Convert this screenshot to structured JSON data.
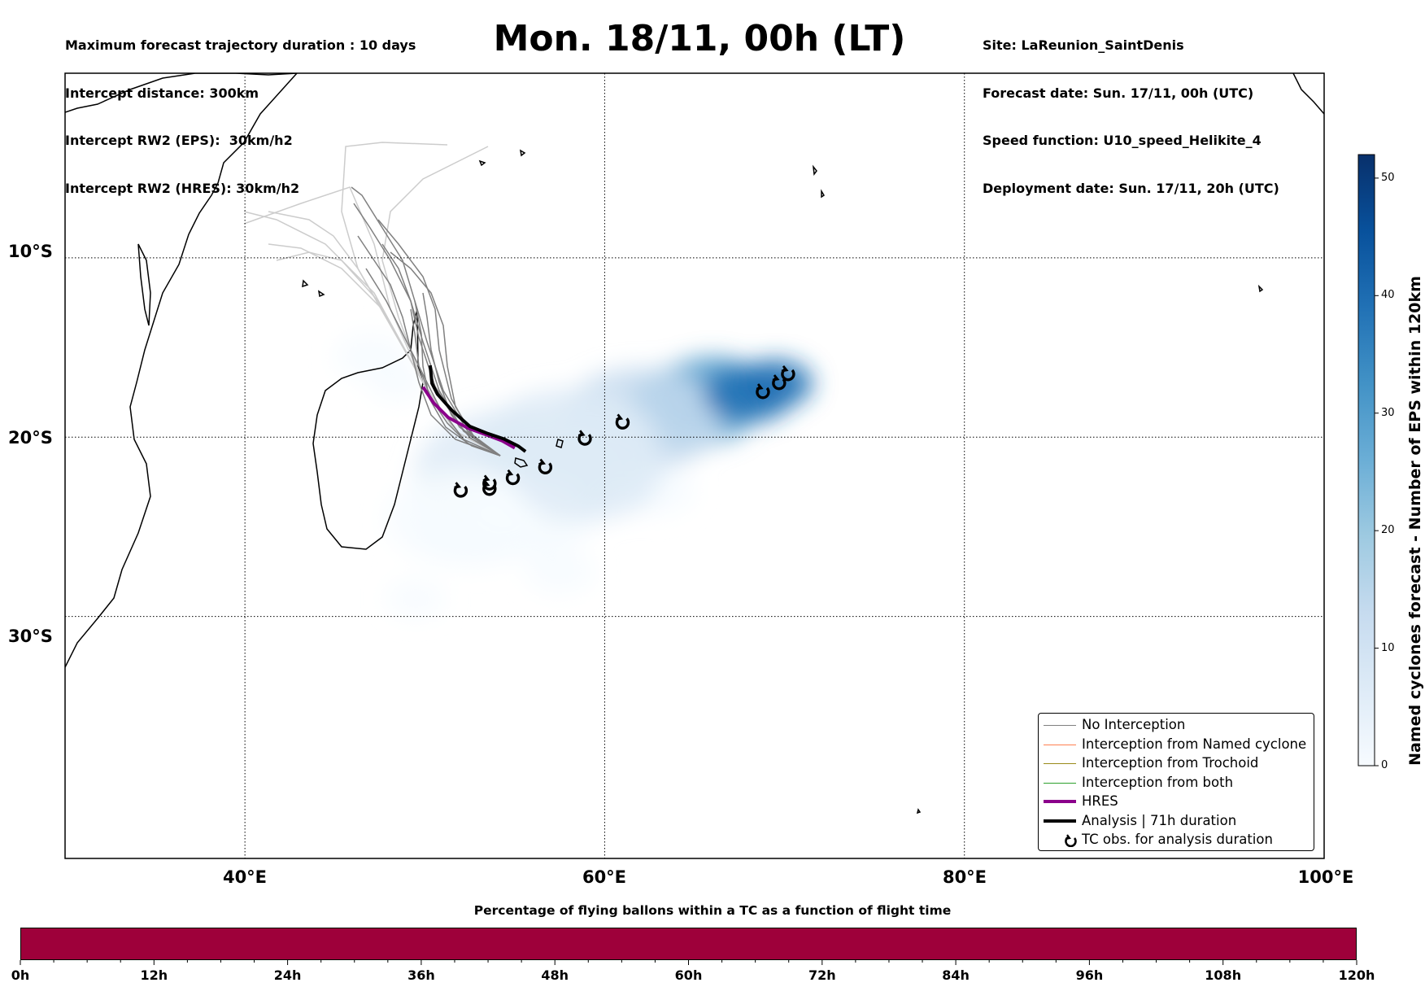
{
  "header": {
    "left_lines": [
      "Maximum forecast trajectory duration : 10 days",
      "Intercept distance: 300km",
      "Intercept RW2 (EPS):  30km/h2",
      "Intercept RW2 (HRES): 30km/h2"
    ],
    "title": "Mon. 18/11, 00h (LT)",
    "right_lines": [
      "Site: LaReunion_SaintDenis",
      "Forecast date: Sun. 17/11, 00h (UTC)",
      "Speed function: U10_speed_Helikite_4",
      "Deployment date: Sun. 17/11, 20h (UTC)"
    ]
  },
  "map": {
    "lon_range": [
      30,
      100
    ],
    "lat_range": [
      -43.5,
      0.3
    ],
    "lat_labels": [
      "10°S",
      "20°S",
      "30°S"
    ],
    "lon_labels": [
      "40°E",
      "60°E",
      "80°E",
      "100°E"
    ],
    "lat_lines": [
      -10,
      -20,
      -30
    ],
    "lon_lines": [
      40,
      60,
      80
    ],
    "grid": "dotted"
  },
  "legend": {
    "placement": "lower-right",
    "items": [
      {
        "label": "No Interception",
        "color": "#808080",
        "kind": "line-thin"
      },
      {
        "label": "Interception from Named cyclone",
        "color": "#ff7f50",
        "kind": "line-thin"
      },
      {
        "label": "Interception from Trochoid",
        "color": "#9a8a1a",
        "kind": "line-thin"
      },
      {
        "label": "Interception from both",
        "color": "#2ca02c",
        "kind": "line-thin"
      },
      {
        "label": "HRES",
        "color": "#8b008b",
        "kind": "line-thick"
      },
      {
        "label": "Analysis | 71h duration",
        "color": "#000000",
        "kind": "line-thick"
      },
      {
        "label": "TC obs. for analysis duration",
        "color": "#000000",
        "kind": "cyclone-icon"
      }
    ]
  },
  "colorbar": {
    "label": "Named cyclones forecast - Number of EPS within 120km",
    "ticks": [
      "0",
      "10",
      "20",
      "30",
      "40",
      "50"
    ],
    "tick_values": [
      0,
      10,
      20,
      30,
      40,
      50
    ],
    "max": 52,
    "colors": [
      "#f7fbff",
      "#deebf7",
      "#c6dbef",
      "#9ecae1",
      "#6baed6",
      "#4292c6",
      "#2171b5",
      "#08519c",
      "#08306b"
    ]
  },
  "bottom_bar": {
    "title": "Percentage of flying ballons within a TC as a function of flight time",
    "color": "#9e003a",
    "tick_labels": [
      "0h",
      "12h",
      "24h",
      "36h",
      "48h",
      "60h",
      "72h",
      "84h",
      "96h",
      "108h",
      "120h"
    ],
    "max_hours": 120
  },
  "chart_data": {
    "type": "map",
    "analysis_track": [
      [
        50.3,
        -16.0
      ],
      [
        50.4,
        -17.0
      ],
      [
        50.7,
        -17.6
      ],
      [
        51.5,
        -18.5
      ],
      [
        52.5,
        -19.4
      ],
      [
        53.5,
        -19.8
      ],
      [
        54.4,
        -20.1
      ],
      [
        55.2,
        -20.5
      ],
      [
        55.6,
        -20.8
      ]
    ],
    "hres_track": [
      [
        49.9,
        -17.2
      ],
      [
        50.5,
        -18.1
      ],
      [
        51.3,
        -18.9
      ],
      [
        52.4,
        -19.5
      ],
      [
        53.5,
        -19.9
      ],
      [
        54.3,
        -20.2
      ],
      [
        55.0,
        -20.6
      ]
    ],
    "tc_observations": [
      [
        52.0,
        -22.9
      ],
      [
        53.6,
        -22.8
      ],
      [
        53.6,
        -22.5
      ],
      [
        54.9,
        -22.2
      ],
      [
        56.7,
        -21.6
      ],
      [
        58.9,
        -20.0
      ],
      [
        61.0,
        -19.1
      ],
      [
        68.8,
        -17.4
      ],
      [
        69.7,
        -16.9
      ],
      [
        70.2,
        -16.4
      ]
    ],
    "density_blobs": [
      [
        66,
        -17.5,
        2.2,
        30
      ],
      [
        65,
        -18.2,
        2.6,
        24
      ],
      [
        62,
        -19.0,
        3.2,
        14
      ],
      [
        58,
        -20.5,
        3.6,
        8
      ],
      [
        55,
        -22.0,
        4.0,
        5
      ],
      [
        53,
        -25.0,
        2.5,
        3
      ],
      [
        56,
        -24.5,
        2.5,
        3
      ],
      [
        47,
        -15.5,
        1.5,
        2
      ],
      [
        52,
        -24.5,
        3.0,
        3
      ],
      [
        48.5,
        -17.0,
        1.2,
        2
      ],
      [
        57.5,
        -27.5,
        1.4,
        2
      ],
      [
        49.5,
        -29.0,
        1.2,
        2
      ],
      [
        63,
        -23.0,
        1.5,
        2
      ],
      [
        59,
        -22.0,
        3.0,
        5
      ],
      [
        69.5,
        -17.0,
        1.5,
        40
      ],
      [
        68,
        -17.6,
        1.8,
        38
      ]
    ]
  }
}
